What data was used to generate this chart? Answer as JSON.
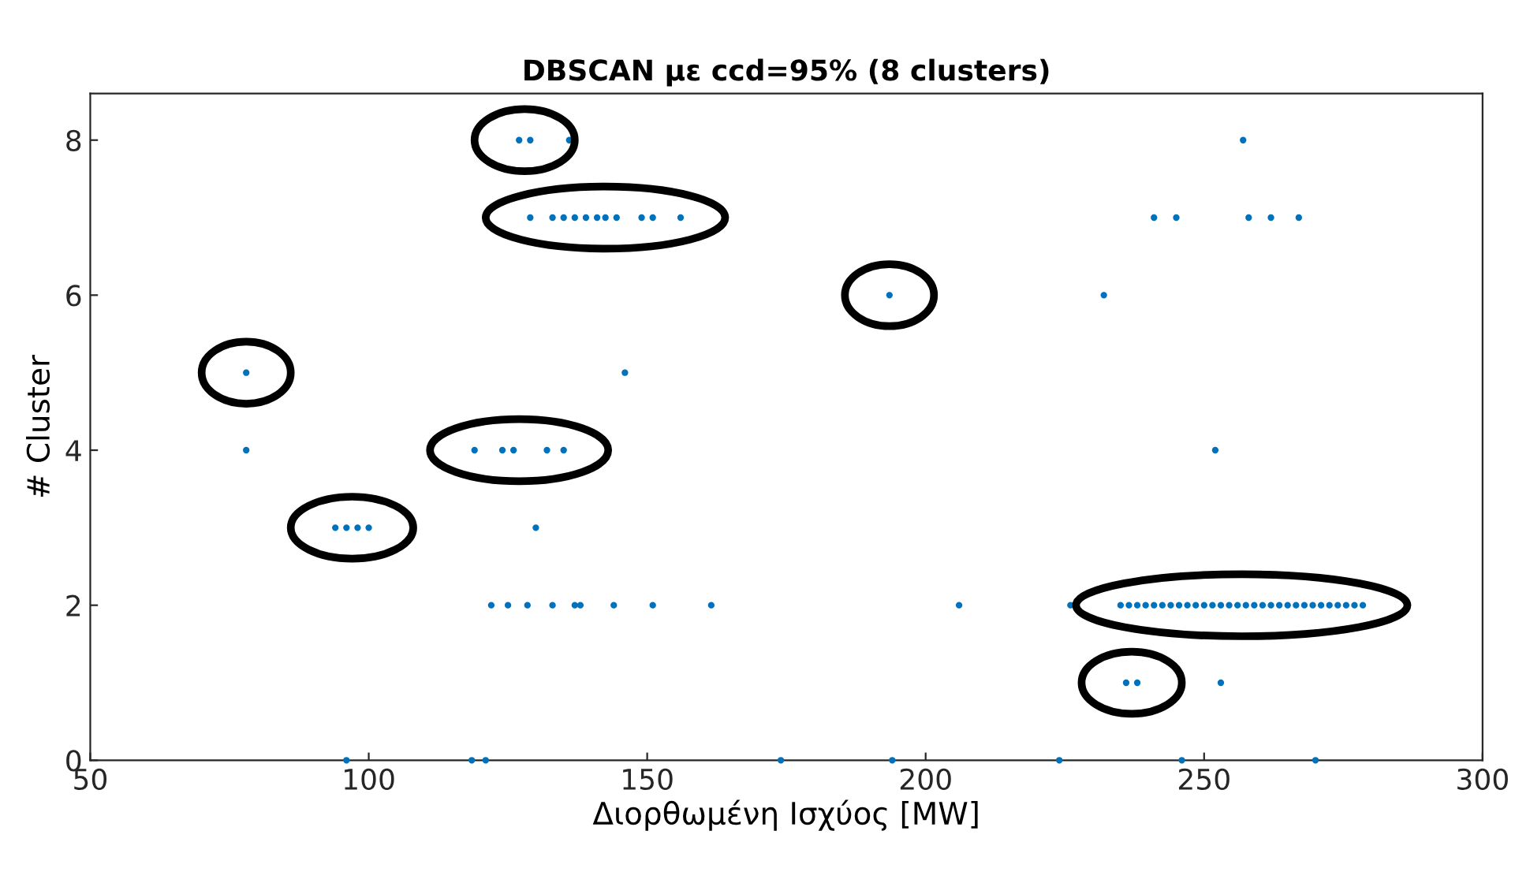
{
  "chart_data": {
    "type": "scatter",
    "title": "DBSCAN με ccd=95% (8 clusters)",
    "xlabel": "Διορθωμένη Ισχύος [MW]",
    "ylabel": "# Cluster",
    "xlim": [
      50,
      300
    ],
    "ylim": [
      0,
      8.6
    ],
    "xticks": [
      50,
      100,
      150,
      200,
      250,
      300
    ],
    "yticks": [
      0,
      2,
      4,
      6,
      8
    ],
    "grid": false,
    "legend": false,
    "series": [
      {
        "color": "#0072bd",
        "x": [
          136,
          257,
          241,
          245,
          258,
          262,
          267,
          232,
          146,
          78,
          252,
          130,
          122,
          125,
          128.5,
          133,
          137,
          138,
          144,
          151,
          161.5,
          206,
          226,
          253,
          96,
          118.5,
          121,
          174,
          194,
          224,
          246,
          270
        ],
        "values": [
          8,
          8,
          7,
          7,
          7,
          7,
          7,
          6,
          5,
          4,
          4,
          3,
          2,
          2,
          2,
          2,
          2,
          2,
          2,
          2,
          2,
          2,
          2,
          1,
          0,
          0,
          0,
          0,
          0,
          0,
          0,
          0
        ]
      },
      {
        "color": "#0072bd",
        "x": [
          127,
          129
        ],
        "values": [
          8,
          8
        ]
      },
      {
        "color": "#0072bd",
        "x": [
          129,
          133,
          135,
          137,
          139,
          141,
          142.5,
          144.5,
          149,
          151,
          156
        ],
        "values": [
          7,
          7,
          7,
          7,
          7,
          7,
          7,
          7,
          7,
          7,
          7
        ]
      },
      {
        "color": "#0072bd",
        "x": [
          193.5
        ],
        "values": [
          6
        ]
      },
      {
        "color": "#0072bd",
        "x": [
          78
        ],
        "values": [
          5
        ]
      },
      {
        "color": "#0072bd",
        "x": [
          119,
          124,
          126,
          132,
          135
        ],
        "values": [
          4,
          4,
          4,
          4,
          4
        ]
      },
      {
        "color": "#0072bd",
        "x": [
          94,
          96,
          98,
          100
        ],
        "values": [
          3,
          3,
          3,
          3
        ]
      },
      {
        "color": "#0072bd",
        "x": [
          235,
          236.5,
          238,
          239.5,
          241,
          242.5,
          244,
          245.5,
          247,
          248.5,
          250,
          251.5,
          253,
          254.5,
          256,
          257.5,
          259,
          260.5,
          262,
          263.5,
          265,
          266.5,
          268,
          269.5,
          271,
          272.5,
          274,
          275.5,
          277,
          278.5
        ],
        "values": [
          2,
          2,
          2,
          2,
          2,
          2,
          2,
          2,
          2,
          2,
          2,
          2,
          2,
          2,
          2,
          2,
          2,
          2,
          2,
          2,
          2,
          2,
          2,
          2,
          2,
          2,
          2,
          2,
          2,
          2
        ]
      },
      {
        "color": "#0072bd",
        "x": [
          236,
          238
        ],
        "values": [
          1,
          1
        ]
      }
    ]
  }
}
